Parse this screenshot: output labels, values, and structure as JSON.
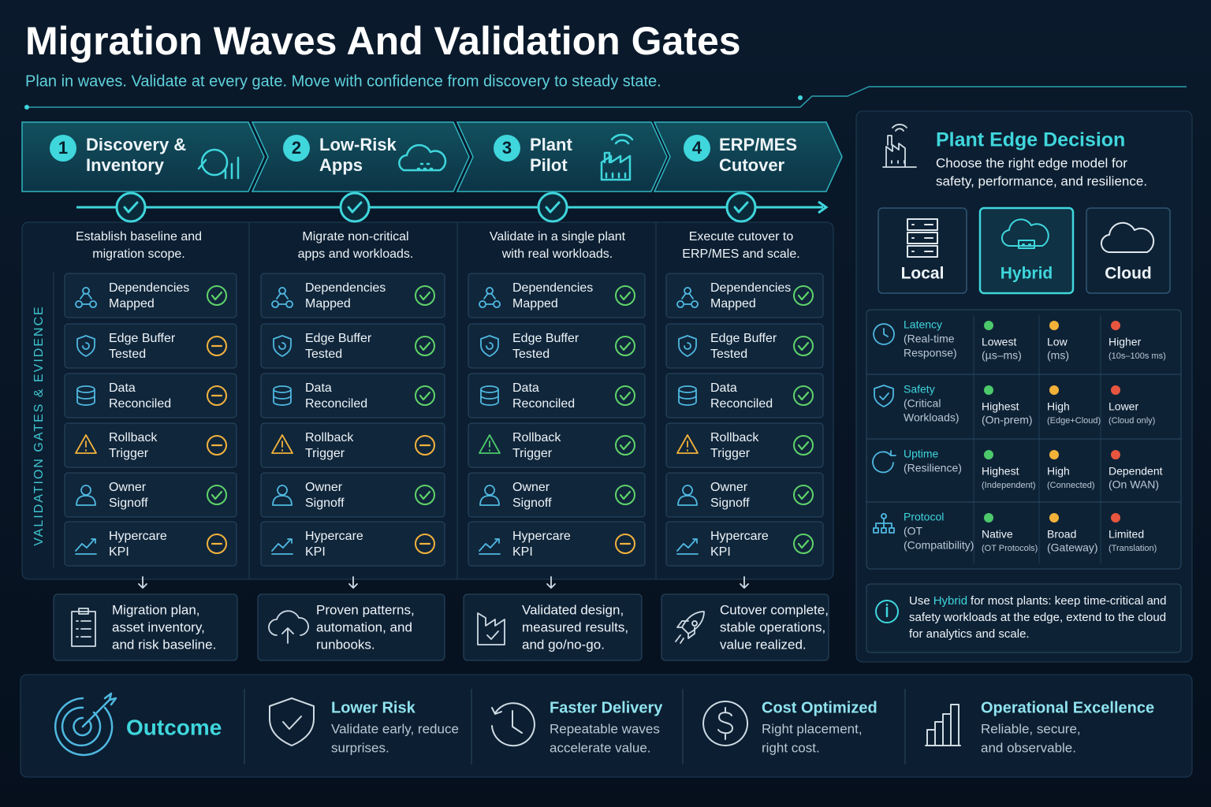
{
  "header": {
    "title": "Migration Waves And Validation Gates",
    "subtitle": "Plan in waves. Validate at every gate. Move with confidence from discovery to steady state."
  },
  "gates_label": "VALIDATION GATES & EVIDENCE",
  "waves": [
    {
      "number": "1",
      "title": [
        "Discovery &",
        "Inventory"
      ],
      "description": [
        "Establish baseline and",
        "migration scope."
      ],
      "gates": [
        {
          "label": [
            "Dependencies",
            "Mapped"
          ],
          "passed": true
        },
        {
          "label": [
            "Edge Buffer",
            "Tested"
          ],
          "passed": false
        },
        {
          "label": [
            "Data",
            "Reconciled"
          ],
          "passed": false
        },
        {
          "label": [
            "Rollback",
            "Trigger"
          ],
          "passed": false
        },
        {
          "label": [
            "Owner",
            "Signoff"
          ],
          "passed": true
        },
        {
          "label": [
            "Hypercare",
            "KPI"
          ],
          "passed": false
        }
      ],
      "output": [
        "Migration plan,",
        "asset inventory,",
        "and risk baseline."
      ]
    },
    {
      "number": "2",
      "title": [
        "Low-Risk",
        "Apps"
      ],
      "description": [
        "Migrate non-critical",
        "apps and workloads."
      ],
      "gates": [
        {
          "label": [
            "Dependencies",
            "Mapped"
          ],
          "passed": true
        },
        {
          "label": [
            "Edge Buffer",
            "Tested"
          ],
          "passed": true
        },
        {
          "label": [
            "Data",
            "Reconciled"
          ],
          "passed": true
        },
        {
          "label": [
            "Rollback",
            "Trigger"
          ],
          "passed": false
        },
        {
          "label": [
            "Owner",
            "Signoff"
          ],
          "passed": true
        },
        {
          "label": [
            "Hypercare",
            "KPI"
          ],
          "passed": false
        }
      ],
      "output": [
        "Proven patterns,",
        "automation, and",
        "runbooks."
      ]
    },
    {
      "number": "3",
      "title": [
        "Plant",
        "Pilot"
      ],
      "description": [
        "Validate in a single plant",
        "with real workloads."
      ],
      "gates": [
        {
          "label": [
            "Dependencies",
            "Mapped"
          ],
          "passed": true
        },
        {
          "label": [
            "Edge Buffer",
            "Tested"
          ],
          "passed": true
        },
        {
          "label": [
            "Data",
            "Reconciled"
          ],
          "passed": true
        },
        {
          "label": [
            "Rollback",
            "Trigger"
          ],
          "passed": true
        },
        {
          "label": [
            "Owner",
            "Signoff"
          ],
          "passed": true
        },
        {
          "label": [
            "Hypercare",
            "KPI"
          ],
          "passed": false
        }
      ],
      "output": [
        "Validated design,",
        "measured results,",
        "and go/no-go."
      ]
    },
    {
      "number": "4",
      "title": [
        "ERP/MES",
        "Cutover"
      ],
      "description": [
        "Execute cutover to",
        "ERP/MES and scale."
      ],
      "gates": [
        {
          "label": [
            "Dependencies",
            "Mapped"
          ],
          "passed": true
        },
        {
          "label": [
            "Edge Buffer",
            "Tested"
          ],
          "passed": true
        },
        {
          "label": [
            "Data",
            "Reconciled"
          ],
          "passed": true
        },
        {
          "label": [
            "Rollback",
            "Trigger"
          ],
          "passed": true
        },
        {
          "label": [
            "Owner",
            "Signoff"
          ],
          "passed": true
        },
        {
          "label": [
            "Hypercare",
            "KPI"
          ],
          "passed": true
        }
      ],
      "output": [
        "Cutover complete,",
        "stable operations,",
        "value realized."
      ]
    }
  ],
  "decision": {
    "title": "Plant Edge Decision",
    "description": [
      "Choose the right edge model for",
      "safety, performance, and resilience."
    ],
    "options": [
      {
        "label": "Local",
        "selected": false
      },
      {
        "label": "Hybrid",
        "selected": true
      },
      {
        "label": "Cloud",
        "selected": false
      }
    ],
    "level_colors": [
      "#4cc96a",
      "#f2b23a",
      "#e8553f"
    ],
    "rows": [
      {
        "title": "Latency",
        "detail": [
          "(Real-time",
          "Response)"
        ],
        "cells": [
          {
            "label": "Lowest",
            "detail": "(µs–ms)"
          },
          {
            "label": "Low",
            "detail": "(ms)"
          },
          {
            "label": "Higher",
            "detail": "(10s–100s ms)"
          }
        ]
      },
      {
        "title": "Safety",
        "detail": [
          "(Critical",
          "Workloads)"
        ],
        "cells": [
          {
            "label": "Highest",
            "detail": "(On-prem)"
          },
          {
            "label": "High",
            "detail": "(Edge+Cloud)"
          },
          {
            "label": "Lower",
            "detail": "(Cloud only)"
          }
        ]
      },
      {
        "title": "Uptime",
        "detail": [
          "(Resilience)"
        ],
        "cells": [
          {
            "label": "Highest",
            "detail": "(Independent)"
          },
          {
            "label": "High",
            "detail": "(Connected)"
          },
          {
            "label": "Dependent",
            "detail": "(On WAN)"
          }
        ]
      },
      {
        "title": "Protocol",
        "detail": [
          "(OT",
          "(Compatibility)"
        ],
        "cells": [
          {
            "label": "Native",
            "detail": "(OT Protocols)"
          },
          {
            "label": "Broad",
            "detail": "(Gateway)"
          },
          {
            "label": "Limited",
            "detail": "(Translation)"
          }
        ]
      }
    ],
    "note": {
      "prefix": "Use",
      "highlight": "Hybrid",
      "lines": [
        "for most plants: keep time-critical and",
        "safety workloads at the edge, extend to the cloud",
        "for analytics and scale."
      ]
    }
  },
  "outcome": {
    "label": "Outcome",
    "items": [
      {
        "title": "Lower Risk",
        "lines": [
          "Validate early, reduce",
          "surprises."
        ]
      },
      {
        "title": "Faster Delivery",
        "lines": [
          "Repeatable waves",
          "accelerate value."
        ]
      },
      {
        "title": "Cost Optimized",
        "lines": [
          "Right placement,",
          "right cost."
        ]
      },
      {
        "title": "Operational Excellence",
        "lines": [
          "Reliable, secure,",
          "and observable."
        ]
      }
    ]
  }
}
